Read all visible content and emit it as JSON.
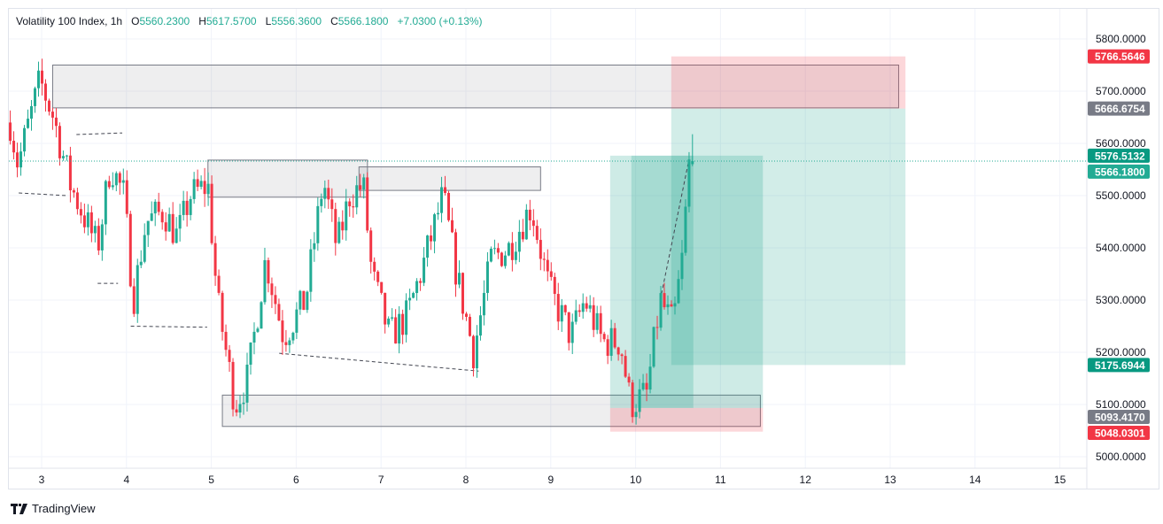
{
  "header": {
    "symbol": "Volatility 100 Index, 1h",
    "o_label": "O",
    "o": "5560.2300",
    "h_label": "H",
    "h": "5617.5700",
    "l_label": "L",
    "l": "5556.3600",
    "c_label": "C",
    "c": "5566.1800",
    "change": "+7.0300 (+0.13%)"
  },
  "brand": "TradingView",
  "colors": {
    "up": "#22ab94",
    "down": "#f23645",
    "grid": "#f0f3fa"
  },
  "chart_data": {
    "type": "candlestick",
    "title": "Volatility 100 Index, 1h",
    "xlabel": "",
    "ylabel": "",
    "x_ticks": [
      "3",
      "4",
      "5",
      "6",
      "7",
      "8",
      "9",
      "10",
      "11",
      "12",
      "13",
      "14",
      "15"
    ],
    "y_ticks": [
      "5000.0000",
      "5100.0000",
      "5200.0000",
      "5300.0000",
      "5400.0000",
      "5500.0000",
      "5600.0000",
      "5700.0000",
      "5800.0000"
    ],
    "ylim": [
      4990,
      5860
    ],
    "xlim": [
      2.6,
      15.3
    ],
    "path_anchors": [
      [
        2.63,
        5640
      ],
      [
        2.72,
        5560
      ],
      [
        2.98,
        5720
      ],
      [
        3.14,
        5650
      ],
      [
        3.34,
        5520
      ],
      [
        3.66,
        5400
      ],
      [
        3.81,
        5560
      ],
      [
        3.97,
        5500
      ],
      [
        4.08,
        5300
      ],
      [
        4.23,
        5450
      ],
      [
        4.44,
        5470
      ],
      [
        4.6,
        5420
      ],
      [
        4.75,
        5500
      ],
      [
        4.96,
        5520
      ],
      [
        5.07,
        5300
      ],
      [
        5.28,
        5100
      ],
      [
        5.43,
        5150
      ],
      [
        5.64,
        5380
      ],
      [
        5.85,
        5230
      ],
      [
        6.11,
        5300
      ],
      [
        6.32,
        5530
      ],
      [
        6.48,
        5400
      ],
      [
        6.63,
        5500
      ],
      [
        6.79,
        5520
      ],
      [
        6.89,
        5350
      ],
      [
        7.1,
        5230
      ],
      [
        7.31,
        5270
      ],
      [
        7.52,
        5380
      ],
      [
        7.73,
        5500
      ],
      [
        7.89,
        5350
      ],
      [
        8.09,
        5200
      ],
      [
        8.3,
        5380
      ],
      [
        8.51,
        5400
      ],
      [
        8.67,
        5450
      ],
      [
        8.77,
        5480
      ],
      [
        8.98,
        5320
      ],
      [
        9.24,
        5230
      ],
      [
        9.4,
        5300
      ],
      [
        9.61,
        5220
      ],
      [
        9.82,
        5220
      ],
      [
        9.94,
        5100
      ],
      [
        10.13,
        5120
      ],
      [
        10.29,
        5300
      ],
      [
        10.44,
        5250
      ],
      [
        10.55,
        5380
      ],
      [
        10.63,
        5560
      ]
    ],
    "last_candle": {
      "open": 5560.23,
      "high": 5617.57,
      "low": 5556.36,
      "close": 5566.18
    },
    "zones": [
      {
        "x": [
          3.13,
          13.1
        ],
        "y": [
          5668,
          5750
        ]
      },
      {
        "x": [
          4.96,
          6.84
        ],
        "y": [
          5497,
          5568
        ]
      },
      {
        "x": [
          6.74,
          8.88
        ],
        "y": [
          5510,
          5555
        ]
      },
      {
        "x": [
          5.13,
          11.47
        ],
        "y": [
          5058,
          5118
        ]
      }
    ],
    "positions": [
      {
        "x": [
          9.7,
          11.5
        ],
        "entry": 5576.5,
        "target": 5576.5,
        "stop": 5048.03,
        "tp_low": 5093.4
      },
      {
        "x": [
          10.42,
          13.18
        ],
        "stop": 5766.56,
        "entry": 5666.68,
        "target": 5175.69
      }
    ],
    "dashed_lines": [
      [
        [
          2.73,
          5505
        ],
        [
          3.3,
          5500
        ]
      ],
      [
        [
          3.41,
          5617
        ],
        [
          3.95,
          5620
        ]
      ],
      [
        [
          3.66,
          5332
        ],
        [
          3.9,
          5332
        ]
      ],
      [
        [
          4.05,
          5250
        ],
        [
          4.95,
          5248
        ]
      ],
      [
        [
          5.8,
          5198
        ],
        [
          8.15,
          5164
        ]
      ],
      [
        [
          10.29,
          5300
        ],
        [
          10.63,
          5570
        ]
      ]
    ],
    "price_labels": [
      {
        "text": "5766.5646",
        "value": 5766.5646,
        "color": "#f23645"
      },
      {
        "text": "5666.6754",
        "value": 5666.6754,
        "color": "#787b86"
      },
      {
        "text": "5576.5132",
        "value": 5576.5132,
        "color": "#089981"
      },
      {
        "text": "5566.1800",
        "value": 5566.18,
        "color": "#22ab94"
      },
      {
        "text": "5175.6944",
        "value": 5175.6944,
        "color": "#089981"
      },
      {
        "text": "5093.4170",
        "value": 5093.417,
        "color": "#787b86"
      },
      {
        "text": "5048.0301",
        "value": 5048.0301,
        "color": "#f23645"
      }
    ]
  }
}
